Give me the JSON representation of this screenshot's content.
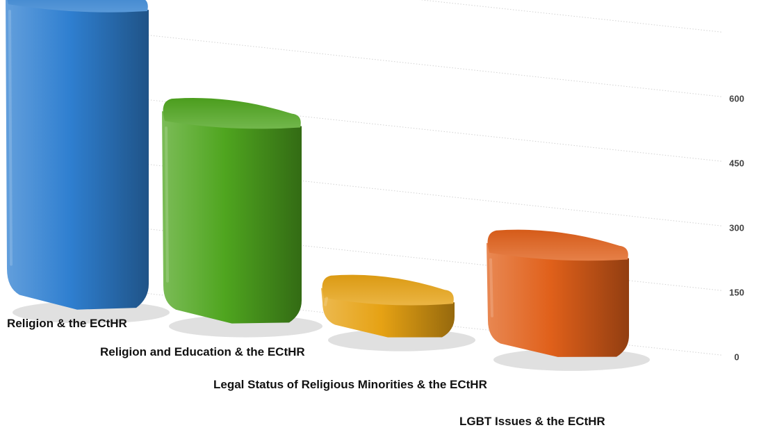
{
  "chart_data": {
    "type": "bar",
    "style": "3d",
    "categories": [
      "Religion & the ECtHR",
      "Religion and Education & the ECtHR",
      "Legal Status of Religious Minorities & the ECtHR",
      "LGBT Issues & the ECtHR"
    ],
    "values": [
      675,
      443,
      72,
      218
    ],
    "colors": [
      "#2f7fd0",
      "#4fa51f",
      "#e6a214",
      "#e0601a"
    ],
    "ylim": [
      0,
      750
    ],
    "yticks": [
      0,
      150,
      300,
      450,
      600
    ],
    "yaxis_position": "right",
    "grid": true,
    "legend": "none",
    "title": "",
    "xlabel": "",
    "ylabel": ""
  }
}
